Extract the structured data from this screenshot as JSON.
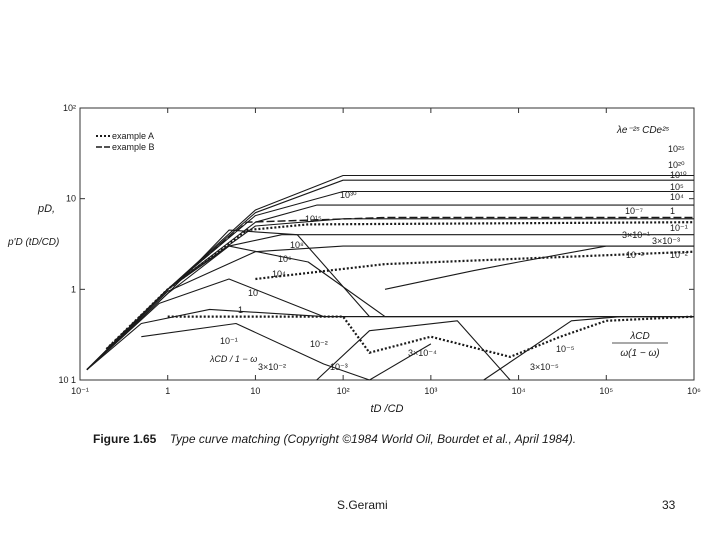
{
  "slide": {
    "figure_label": "Figure 1.65",
    "figure_caption": "Type curve matching (Copyright ©1984 World Oil, Bourdet et al., April 1984).",
    "author": "S.Gerami",
    "page_number": "33"
  },
  "chart_data": {
    "type": "line",
    "title": "",
    "xlabel": "tD /CD",
    "ylabel_top": "pD,",
    "ylabel_bottom": "p'D (tD/CD)",
    "x_scale": "log",
    "y_scale": "log",
    "xlim": [
      0.1,
      1000000
    ],
    "ylim": [
      0.1,
      100
    ],
    "x_ticks": [
      "10⁻¹",
      "1",
      "10",
      "10²",
      "10³",
      "10⁴",
      "10⁵",
      "10⁶"
    ],
    "y_ticks": [
      "10 1",
      "1",
      "10",
      "10²"
    ],
    "legend": [
      {
        "name": "example A",
        "style": "dotted"
      },
      {
        "name": "example B",
        "style": "dashed"
      }
    ],
    "legend_position": "top-left",
    "upper_family_header": "λe⁻²ˢ   CDe²ˢ",
    "pressure_curve_labels": [
      "10²⁵",
      "10²⁰",
      "10¹⁰",
      "10⁵",
      "10⁴",
      "1",
      "10⁻¹",
      "10⁻²"
    ],
    "upper_inner_labels": [
      "10³⁰",
      "10¹⁵",
      "10⁸",
      "10⁶",
      "10⁴",
      "10",
      "1",
      "10⁻¹"
    ],
    "transition_labels": [
      "10⁻⁷",
      "3×10⁻¹",
      "3×10⁻³",
      "10⁻²",
      "10⁻³",
      "3×10⁻⁴",
      "3×10⁻⁵",
      "10⁻⁵",
      "3×10⁻²",
      "10⁻²"
    ],
    "lower_box_label": "λCD",
    "lower_box_label2": "ω(1 − ω)",
    "lower_left_label": "λCD / 1 − ω",
    "series": [
      {
        "x": [
          0.12,
          1,
          10,
          100,
          1000000
        ],
        "y": [
          0.13,
          1.0,
          7.5,
          18,
          18
        ]
      },
      {
        "x": [
          0.12,
          1,
          10,
          100,
          1000000
        ],
        "y": [
          0.13,
          1.0,
          7.0,
          16,
          16
        ]
      },
      {
        "x": [
          0.12,
          1,
          10,
          100,
          1000000
        ],
        "y": [
          0.13,
          1.0,
          6.5,
          12,
          12
        ]
      },
      {
        "x": [
          0.12,
          1,
          10,
          50,
          1000000
        ],
        "y": [
          0.13,
          1.0,
          5.5,
          8.5,
          8.5
        ]
      },
      {
        "x": [
          0.12,
          1,
          10,
          100,
          1000000
        ],
        "y": [
          0.13,
          1.0,
          5.0,
          6.0,
          6.0
        ]
      },
      {
        "x": [
          0.12,
          1,
          5,
          20,
          100,
          1000000
        ],
        "y": [
          0.13,
          1.0,
          3.0,
          4.0,
          4.0,
          4.0
        ]
      },
      {
        "x": [
          0.12,
          1,
          10,
          100,
          1000000
        ],
        "y": [
          0.13,
          0.95,
          2.6,
          3.0,
          3.0
        ]
      },
      {
        "x": [
          0.12,
          1,
          5,
          30,
          200,
          1000000
        ],
        "y": [
          0.13,
          0.9,
          4.5,
          4.0,
          0.5,
          0.5
        ]
      },
      {
        "x": [
          0.12,
          1,
          5,
          40,
          300,
          1000000
        ],
        "y": [
          0.13,
          0.9,
          3.0,
          2.0,
          0.5,
          0.5
        ]
      },
      {
        "x": [
          0.12,
          0.8,
          5,
          60,
          1000000
        ],
        "y": [
          0.13,
          0.7,
          1.3,
          0.5,
          0.5
        ]
      },
      {
        "x": [
          0.12,
          0.5,
          3,
          60,
          1000000
        ],
        "y": [
          0.13,
          0.42,
          0.6,
          0.5,
          0.5
        ]
      },
      {
        "x": [
          0.5,
          6,
          60,
          200,
          1000
        ],
        "y": [
          0.3,
          0.42,
          0.15,
          0.1,
          0.25
        ]
      },
      {
        "x": [
          50,
          200,
          2000,
          8000
        ],
        "y": [
          0.1,
          0.35,
          0.45,
          0.1
        ]
      },
      {
        "x": [
          4000,
          40000,
          150000,
          1000000
        ],
        "y": [
          0.1,
          0.45,
          0.5,
          0.5
        ]
      },
      {
        "x": [
          300,
          3000,
          10000,
          100000,
          1000000
        ],
        "y": [
          1.0,
          1.6,
          2.0,
          3.0,
          3.0
        ]
      }
    ]
  }
}
